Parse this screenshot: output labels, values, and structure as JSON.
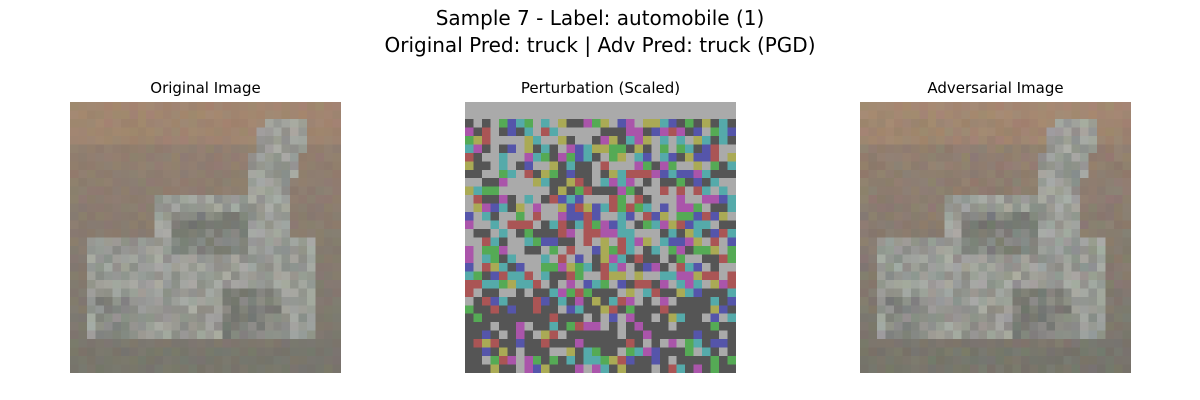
{
  "suptitle": {
    "line1": "Sample 7 - Label: automobile (1)",
    "line2": "Original Pred: truck | Adv Pred: truck (PGD)"
  },
  "panels": [
    {
      "title": "Original Image"
    },
    {
      "title": "Perturbation (Scaled)"
    },
    {
      "title": "Adversarial Image"
    }
  ]
}
